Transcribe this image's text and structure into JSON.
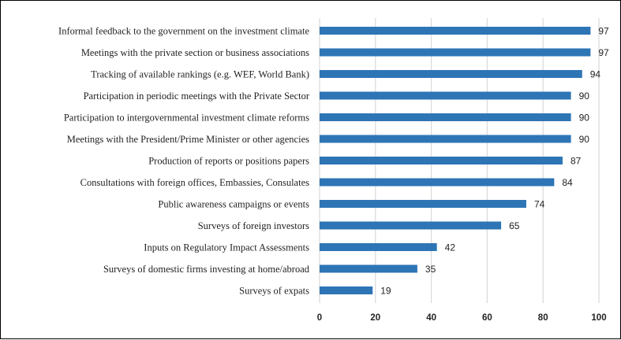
{
  "chart_data": {
    "type": "bar",
    "orientation": "horizontal",
    "categories": [
      "Informal feedback to the government on the investment climate",
      "Meetings with the private section or business associations",
      "Tracking of available rankings (e.g. WEF, World Bank)",
      "Participation in periodic meetings with the Private Sector",
      "Participation to intergovernmental investment climate reforms",
      "Meetings with the President/Prime Minister or other agencies",
      "Production of reports or positions papers",
      "Consultations with foreign offices, Embassies, Consulates",
      "Public awareness campaigns or events",
      "Surveys of foreign investors",
      "Inputs on Regulatory Impact Assessments",
      "Surveys of domestic firms investing at home/abroad",
      "Surveys of expats"
    ],
    "values": [
      97,
      97,
      94,
      90,
      90,
      90,
      87,
      84,
      74,
      65,
      42,
      35,
      19
    ],
    "x_ticks": [
      "0",
      "20",
      "40",
      "60",
      "80",
      "100"
    ],
    "xlim": [
      0,
      100
    ],
    "grid": "vertical",
    "legend": "none",
    "bar_color": "#2e75b6",
    "grid_color": "#d9d9d9",
    "title": "",
    "xlabel": "",
    "ylabel": ""
  }
}
